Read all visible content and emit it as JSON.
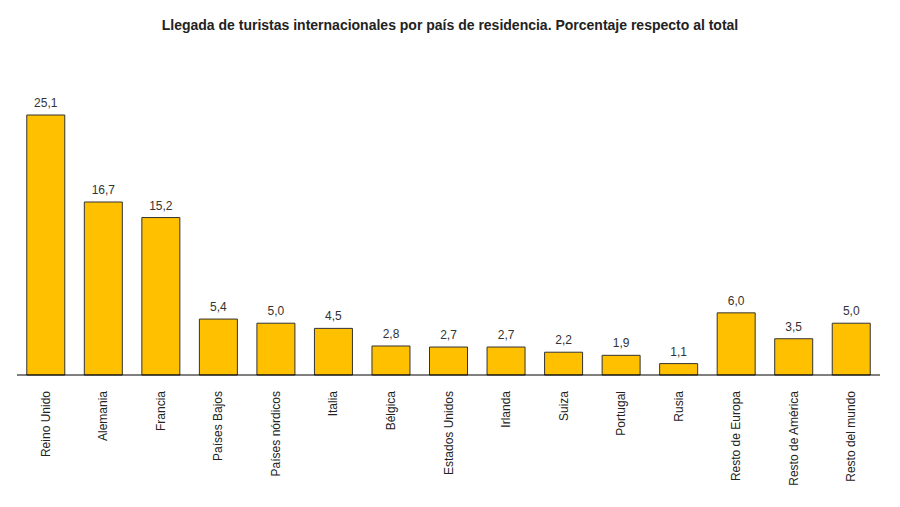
{
  "chart_data": {
    "type": "bar",
    "title": "Llegada de turistas internacionales por país de residencia. Porcentaje respecto al total",
    "categories": [
      "Reino Unido",
      "Alemania",
      "Francia",
      "Países Bajos",
      "Países nórdicos",
      "Italia",
      "Bélgica",
      "Estados Unidos",
      "Irlanda",
      "Suiza",
      "Portugal",
      "Rusia",
      "Resto de Europa",
      "Resto de América",
      "Resto del mundo"
    ],
    "values": [
      25.1,
      16.7,
      15.2,
      5.4,
      5.0,
      4.5,
      2.8,
      2.7,
      2.7,
      2.2,
      1.9,
      1.1,
      6.0,
      3.5,
      5.0
    ],
    "value_labels": [
      "25,1",
      "16,7",
      "15,2",
      "5,4",
      "5,0",
      "4,5",
      "2,8",
      "2,7",
      "2,7",
      "2,2",
      "1,9",
      "1,1",
      "6,0",
      "3,5",
      "5,0"
    ],
    "color": "#FFC000",
    "data_labels": true,
    "tick_labels": "x",
    "grid": false
  }
}
